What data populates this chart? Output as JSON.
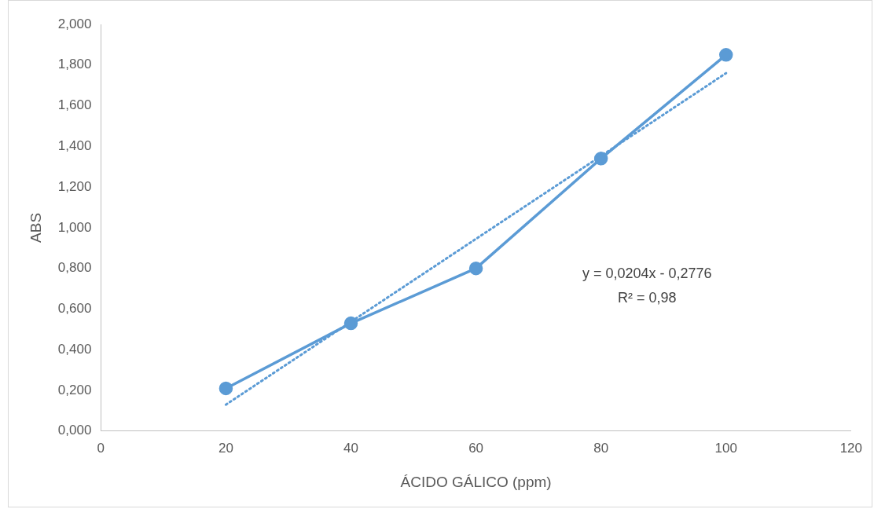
{
  "chart_data": {
    "type": "line",
    "xlabel": "ÁCIDO GÁLICO (ppm)",
    "ylabel": "ABS",
    "x": [
      20,
      40,
      60,
      80,
      100
    ],
    "series": [
      {
        "color": "#5b9bd5",
        "values": [
          0.21,
          0.53,
          0.8,
          1.34,
          1.85
        ],
        "marker": "circle",
        "line_style": "solid"
      },
      {
        "type": "line",
        "color": "#5b9bd5",
        "x": [
          20,
          100
        ],
        "values": [
          0.13,
          1.76
        ],
        "marker": "none",
        "line_style": "dotted"
      }
    ],
    "xlim": [
      0,
      120
    ],
    "xticks": [
      0,
      20,
      40,
      60,
      80,
      100,
      120
    ],
    "ylim": [
      0,
      2
    ],
    "yticks": [
      {
        "value": 0,
        "label": "0,000"
      },
      {
        "value": 0.2,
        "label": "0,200"
      },
      {
        "value": 0.4,
        "label": "0,400"
      },
      {
        "value": 0.6,
        "label": "0,600"
      },
      {
        "value": 0.8,
        "label": "0,800"
      },
      {
        "value": 1,
        "label": "1,000"
      },
      {
        "value": 1.2,
        "label": "1,200"
      },
      {
        "value": 1.4,
        "label": "1,400"
      },
      {
        "value": 1.6,
        "label": "1,600"
      },
      {
        "value": 1.8,
        "label": "1,800"
      },
      {
        "value": 2,
        "label": "2,000"
      }
    ],
    "annotations": [
      "y = 0,0204x - 0,2776",
      "R² = 0,98"
    ],
    "grid": false,
    "legend": false
  }
}
